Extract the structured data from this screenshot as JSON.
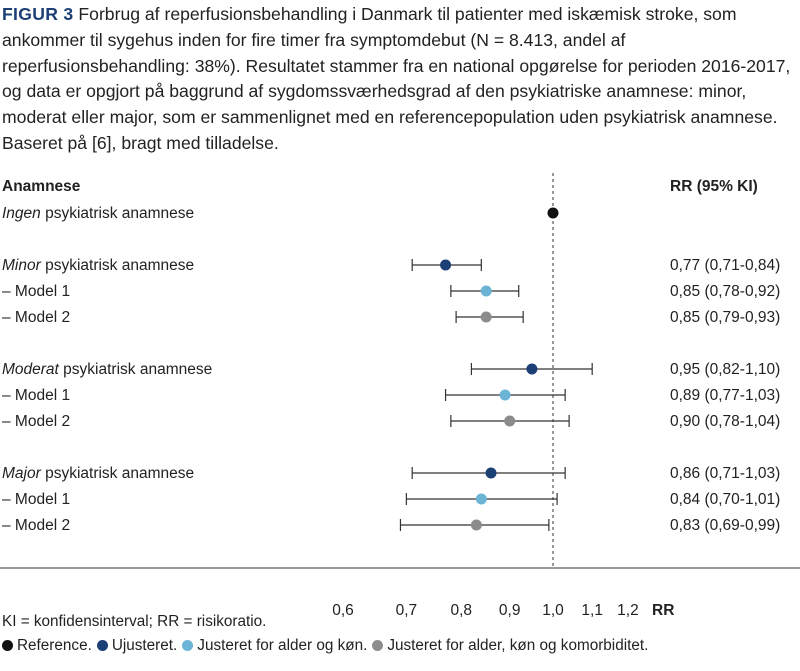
{
  "caption": {
    "label": "FIGUR 3",
    "text": "Forbrug af reperfusionsbehandling i Danmark til patienter med iskæmisk stroke, som ankommer til sygehus inden for fire timer fra symptomdebut (N = 8.413, andel af reperfusionsbehandling: 38%). Resultatet stammer fra en national opgørelse for perioden 2016-2017, og data er opgjort på baggrund af sygdomssværhedsgrad af den psykiatriske anamnese: minor, moderat eller major, som er sammenlignet med en referencepopulation uden psykiatrisk anamnese. Baseret på [6], bragt med tilladelse."
  },
  "chart_data": {
    "type": "forest",
    "left_header": "Anamnese",
    "right_header": "RR (95% KI)",
    "xlabel": "RR",
    "xscale": "log",
    "xlim": [
      0.58,
      1.22
    ],
    "xticks": [
      0.6,
      0.7,
      0.8,
      0.9,
      1.0,
      1.1,
      1.2
    ],
    "xtick_labels": [
      "0,6",
      "0,7",
      "0,8",
      "0,9",
      "1,0",
      "1,1",
      "1,2"
    ],
    "reference_line": 1.0,
    "colors": {
      "reference": "#111111",
      "unadjusted": "#1c3f75",
      "adjusted_age_sex": "#6cb4d6",
      "adjusted_full": "#8c8c8c",
      "line": "#333333"
    },
    "rows": [
      {
        "label_italic": "Ingen",
        "label_rest": " psykiatrisk anamnese",
        "group": "reference",
        "rr": 1.0,
        "lo": null,
        "hi": null,
        "rr_text": ""
      },
      {
        "gap": true
      },
      {
        "label_italic": "Minor",
        "label_rest": " psykiatrisk anamnese",
        "group": "unadjusted",
        "rr": 0.77,
        "lo": 0.71,
        "hi": 0.84,
        "rr_text": "0,77 (0,71-0,84)"
      },
      {
        "label_italic": "",
        "label_rest": "– Model 1",
        "group": "adjusted_age_sex",
        "rr": 0.85,
        "lo": 0.78,
        "hi": 0.92,
        "rr_text": "0,85 (0,78-0,92)"
      },
      {
        "label_italic": "",
        "label_rest": "– Model 2",
        "group": "adjusted_full",
        "rr": 0.85,
        "lo": 0.79,
        "hi": 0.93,
        "rr_text": "0,85 (0,79-0,93)"
      },
      {
        "gap": true
      },
      {
        "label_italic": "Moderat",
        "label_rest": " psykiatrisk anamnese",
        "group": "unadjusted",
        "rr": 0.95,
        "lo": 0.82,
        "hi": 1.1,
        "rr_text": "0,95 (0,82-1,10)"
      },
      {
        "label_italic": "",
        "label_rest": "– Model 1",
        "group": "adjusted_age_sex",
        "rr": 0.89,
        "lo": 0.77,
        "hi": 1.03,
        "rr_text": "0,89 (0,77-1,03)"
      },
      {
        "label_italic": "",
        "label_rest": "– Model 2",
        "group": "adjusted_full",
        "rr": 0.9,
        "lo": 0.78,
        "hi": 1.04,
        "rr_text": "0,90 (0,78-1,04)"
      },
      {
        "gap": true
      },
      {
        "label_italic": "Major",
        "label_rest": " psykiatrisk anamnese",
        "group": "unadjusted",
        "rr": 0.86,
        "lo": 0.71,
        "hi": 1.03,
        "rr_text": "0,86 (0,71-1,03)"
      },
      {
        "label_italic": "",
        "label_rest": "– Model 1",
        "group": "adjusted_age_sex",
        "rr": 0.84,
        "lo": 0.7,
        "hi": 1.01,
        "rr_text": "0,84 (0,70-1,01)"
      },
      {
        "label_italic": "",
        "label_rest": "– Model 2",
        "group": "adjusted_full",
        "rr": 0.83,
        "lo": 0.69,
        "hi": 0.99,
        "rr_text": "0,83 (0,69-0,99)"
      }
    ],
    "legend": [
      {
        "group": "reference",
        "label": "Reference."
      },
      {
        "group": "unadjusted",
        "label": "Ujusteret."
      },
      {
        "group": "adjusted_age_sex",
        "label": "Justeret for alder og køn."
      },
      {
        "group": "adjusted_full",
        "label": "Justeret for alder, køn og komorbiditet."
      }
    ]
  },
  "notes": {
    "abbreviations": "KI = konfidensinterval; RR = risikoratio."
  }
}
